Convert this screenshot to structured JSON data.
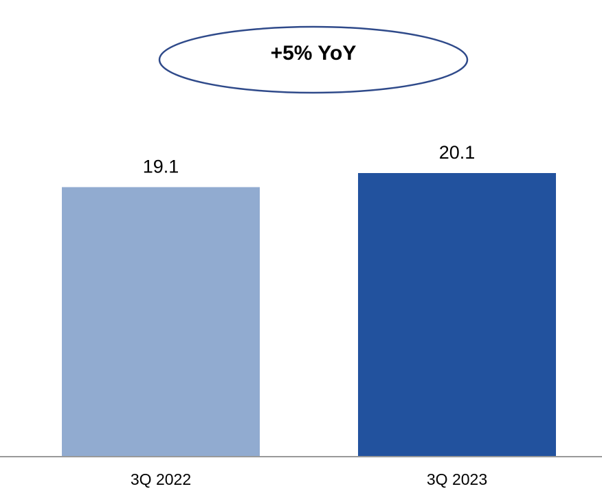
{
  "chart_data": {
    "type": "bar",
    "annotation": "+5% YoY",
    "categories": [
      "3Q 2022",
      "3Q 2023"
    ],
    "values": [
      19.1,
      20.1
    ],
    "colors": [
      "#91abd0",
      "#22529e"
    ]
  }
}
